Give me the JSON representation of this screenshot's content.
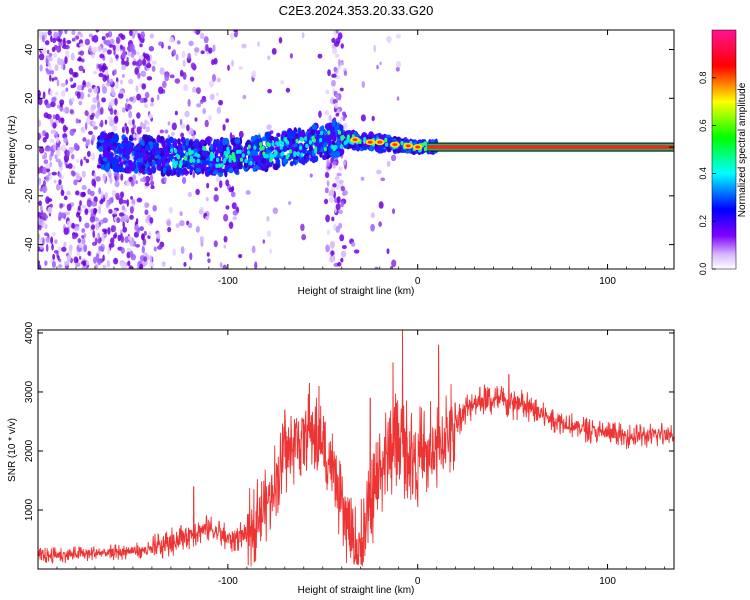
{
  "figure_title": "C2E3.2024.353.20.33.G20",
  "chart_data": [
    {
      "type": "heatmap",
      "title": "",
      "xlabel": "Height of straight line (km)",
      "ylabel": "Frequency (Hz)",
      "xlim": [
        -200,
        135
      ],
      "ylim": [
        -50,
        48
      ],
      "x_ticks": [
        -100,
        0,
        100
      ],
      "y_ticks": [
        -40,
        -20,
        0,
        20,
        40
      ],
      "colorbar": {
        "label": "Normalized spectral amplitude",
        "range": [
          0.0,
          1.0
        ],
        "ticks": [
          "0.0",
          "0.2",
          "0.4",
          "0.6",
          "0.8"
        ],
        "colors": [
          "#ffffff",
          "#7f00ff",
          "#0000ff",
          "#00ffff",
          "#00ff00",
          "#ffff00",
          "#ff0000",
          "#ff1493"
        ]
      },
      "trace_centerline": [
        {
          "x": -165,
          "y": -2
        },
        {
          "x": -130,
          "y": -4
        },
        {
          "x": -110,
          "y": -4
        },
        {
          "x": -95,
          "y": -4
        },
        {
          "x": -80,
          "y": -2
        },
        {
          "x": -65,
          "y": 0
        },
        {
          "x": -45,
          "y": 3
        },
        {
          "x": -35,
          "y": 3
        },
        {
          "x": -25,
          "y": 2
        },
        {
          "x": -10,
          "y": 1
        },
        {
          "x": 0,
          "y": 0
        },
        {
          "x": 10,
          "y": 0
        },
        {
          "x": 135,
          "y": 0
        }
      ]
    },
    {
      "type": "line",
      "title": "",
      "xlabel": "Height of straight line (km)",
      "ylabel": "SNR (10 * v/v)",
      "xlim": [
        -200,
        135
      ],
      "ylim": [
        0,
        4050
      ],
      "x_ticks": [
        -100,
        0,
        100
      ],
      "y_ticks": [
        1000,
        2000,
        3000,
        4000
      ],
      "series": [
        {
          "color": "#ee3333",
          "envelope": [
            {
              "x": -200,
              "y": 220
            },
            {
              "x": -180,
              "y": 250
            },
            {
              "x": -160,
              "y": 280
            },
            {
              "x": -140,
              "y": 330
            },
            {
              "x": -130,
              "y": 450
            },
            {
              "x": -120,
              "y": 600
            },
            {
              "x": -110,
              "y": 700
            },
            {
              "x": -100,
              "y": 500
            },
            {
              "x": -90,
              "y": 600
            },
            {
              "x": -80,
              "y": 1100
            },
            {
              "x": -70,
              "y": 1900
            },
            {
              "x": -60,
              "y": 2300
            },
            {
              "x": -55,
              "y": 2300
            },
            {
              "x": -50,
              "y": 2100
            },
            {
              "x": -45,
              "y": 1700
            },
            {
              "x": -40,
              "y": 1000
            },
            {
              "x": -35,
              "y": 500
            },
            {
              "x": -30,
              "y": 300
            },
            {
              "x": -25,
              "y": 900
            },
            {
              "x": -20,
              "y": 1700
            },
            {
              "x": -15,
              "y": 2000
            },
            {
              "x": -10,
              "y": 2200
            },
            {
              "x": -5,
              "y": 2000
            },
            {
              "x": 0,
              "y": 1900
            },
            {
              "x": 10,
              "y": 2000
            },
            {
              "x": 20,
              "y": 2500
            },
            {
              "x": 30,
              "y": 2850
            },
            {
              "x": 40,
              "y": 2850
            },
            {
              "x": 50,
              "y": 2800
            },
            {
              "x": 60,
              "y": 2700
            },
            {
              "x": 70,
              "y": 2550
            },
            {
              "x": 80,
              "y": 2450
            },
            {
              "x": 90,
              "y": 2350
            },
            {
              "x": 100,
              "y": 2300
            },
            {
              "x": 110,
              "y": 2250
            },
            {
              "x": 120,
              "y": 2250
            },
            {
              "x": 135,
              "y": 2300
            }
          ],
          "spikes": [
            {
              "x": -118,
              "y": 1400
            },
            {
              "x": -70,
              "y": 2700
            },
            {
              "x": -57,
              "y": 3150
            },
            {
              "x": -52,
              "y": 3100
            },
            {
              "x": -25,
              "y": 2900
            },
            {
              "x": -13,
              "y": 3500
            },
            {
              "x": -8,
              "y": 4050
            },
            {
              "x": 11,
              "y": 3800
            },
            {
              "x": 48,
              "y": 3300
            }
          ]
        }
      ]
    }
  ]
}
